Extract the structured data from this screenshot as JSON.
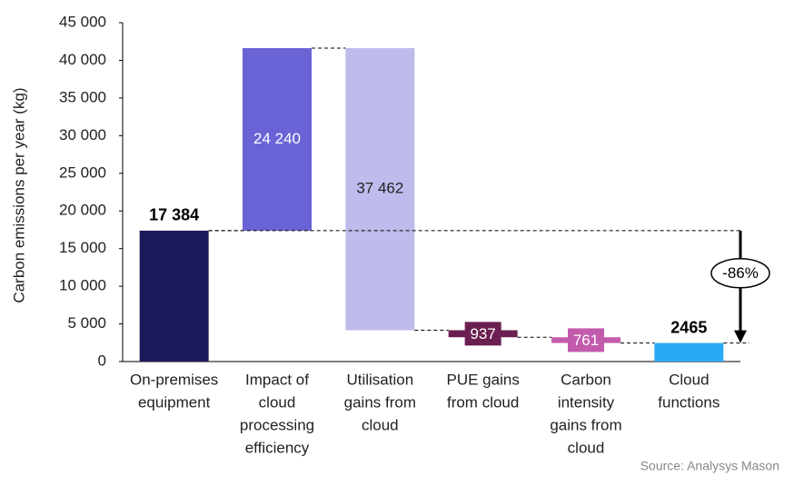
{
  "chart_data": {
    "type": "waterfall",
    "y_label": "Carbon emissions per year (kg)",
    "categories": [
      [
        "On-premises",
        "equipment"
      ],
      [
        "Impact of",
        "cloud",
        "processing",
        "efficiency"
      ],
      [
        "Utilisation",
        "gains from",
        "cloud"
      ],
      [
        "PUE gains",
        "from cloud"
      ],
      [
        "Carbon",
        "intensity",
        "gains from",
        "cloud"
      ],
      [
        "Cloud",
        "functions"
      ]
    ],
    "steps": [
      "total",
      "increase",
      "decrease",
      "decrease",
      "decrease",
      "total"
    ],
    "values": [
      17384,
      24240,
      37462,
      937,
      761,
      2465
    ],
    "value_labels": [
      "17 384",
      "24 240",
      "37 462",
      "937",
      "761",
      "2465"
    ],
    "colors": [
      "#1c1a5a",
      "#6a63d6",
      "#bebcec",
      "#6b1f50",
      "#c35bad",
      "#2aaaf5"
    ],
    "ylim": [
      0,
      45000
    ],
    "yticks": [
      0,
      {
        "value": 5000,
        "label": "5 000"
      },
      {
        "value": 10000,
        "label": "10 000"
      },
      {
        "value": 15000,
        "label": "15 000"
      },
      {
        "value": 20000,
        "label": "20 000"
      },
      {
        "value": 25000,
        "label": "25 000"
      },
      {
        "value": 30000,
        "label": "30 000"
      },
      {
        "value": 35000,
        "label": "35 000"
      },
      {
        "value": 40000,
        "label": "40 000"
      },
      {
        "value": 45000,
        "label": "45 000"
      }
    ],
    "annotation": "-86%",
    "source": "Source: Analysys Mason"
  }
}
